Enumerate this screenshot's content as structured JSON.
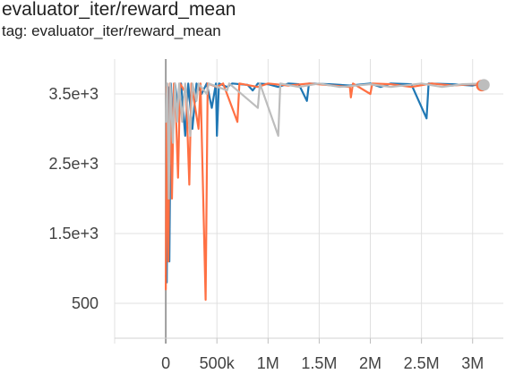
{
  "header": {
    "title": "evaluator_iter/reward_mean",
    "subtitle": "tag: evaluator_iter/reward_mean"
  },
  "chart_data": {
    "type": "line",
    "title": "evaluator_iter/reward_mean",
    "xlabel": "",
    "ylabel": "",
    "xlim": [
      -500000,
      3300000
    ],
    "ylim": [
      0,
      4000
    ],
    "grid": true,
    "x_ticks": [
      {
        "value": 0,
        "label": "0"
      },
      {
        "value": 500000,
        "label": "500k"
      },
      {
        "value": 1000000,
        "label": "1M"
      },
      {
        "value": 1500000,
        "label": "1.5M"
      },
      {
        "value": 2000000,
        "label": "2M"
      },
      {
        "value": 2500000,
        "label": "2.5M"
      },
      {
        "value": 3000000,
        "label": "3M"
      }
    ],
    "y_ticks": [
      {
        "value": 500,
        "label": "500"
      },
      {
        "value": 1500,
        "label": "1.5e+3"
      },
      {
        "value": 2500,
        "label": "2.5e+3"
      },
      {
        "value": 3500,
        "label": "3.5e+3"
      }
    ],
    "series": [
      {
        "color": "#1f77b4",
        "points": [
          [
            0,
            900
          ],
          [
            10000,
            800
          ],
          [
            20000,
            3600
          ],
          [
            35000,
            1100
          ],
          [
            50000,
            3650
          ],
          [
            70000,
            3000
          ],
          [
            90000,
            3650
          ],
          [
            120000,
            3300
          ],
          [
            150000,
            3650
          ],
          [
            190000,
            2900
          ],
          [
            220000,
            3650
          ],
          [
            260000,
            3000
          ],
          [
            300000,
            3650
          ],
          [
            350000,
            3500
          ],
          [
            400000,
            3650
          ],
          [
            450000,
            3300
          ],
          [
            490000,
            3650
          ],
          [
            500000,
            2900
          ],
          [
            520000,
            3650
          ],
          [
            600000,
            3600
          ],
          [
            650000,
            3650
          ],
          [
            800000,
            3630
          ],
          [
            850000,
            3550
          ],
          [
            900000,
            3650
          ],
          [
            1000000,
            3640
          ],
          [
            1100000,
            3600
          ],
          [
            1200000,
            3650
          ],
          [
            1300000,
            3640
          ],
          [
            1380000,
            3400
          ],
          [
            1400000,
            3650
          ],
          [
            1600000,
            3640
          ],
          [
            1800000,
            3620
          ],
          [
            2000000,
            3650
          ],
          [
            2100000,
            3600
          ],
          [
            2200000,
            3650
          ],
          [
            2400000,
            3640
          ],
          [
            2550000,
            3150
          ],
          [
            2570000,
            3650
          ],
          [
            2800000,
            3640
          ],
          [
            3000000,
            3620
          ],
          [
            3100000,
            3650
          ]
        ]
      },
      {
        "color": "#ff7043",
        "points": [
          [
            0,
            700
          ],
          [
            10000,
            3600
          ],
          [
            25000,
            1100
          ],
          [
            40000,
            3650
          ],
          [
            60000,
            2000
          ],
          [
            80000,
            3650
          ],
          [
            100000,
            3200
          ],
          [
            120000,
            2300
          ],
          [
            140000,
            3650
          ],
          [
            200000,
            3500
          ],
          [
            230000,
            2200
          ],
          [
            250000,
            3650
          ],
          [
            320000,
            3000
          ],
          [
            340000,
            3650
          ],
          [
            390000,
            550
          ],
          [
            410000,
            3650
          ],
          [
            500000,
            3600
          ],
          [
            560000,
            3650
          ],
          [
            700000,
            3100
          ],
          [
            720000,
            3650
          ],
          [
            900000,
            3600
          ],
          [
            1000000,
            3650
          ],
          [
            1200000,
            3620
          ],
          [
            1400000,
            3650
          ],
          [
            1800000,
            3600
          ],
          [
            1810000,
            3450
          ],
          [
            1830000,
            3650
          ],
          [
            2000000,
            3500
          ],
          [
            2020000,
            3650
          ],
          [
            2200000,
            3640
          ],
          [
            2400000,
            3600
          ],
          [
            2600000,
            3650
          ],
          [
            2800000,
            3620
          ],
          [
            3000000,
            3640
          ],
          [
            3100000,
            3620
          ]
        ]
      },
      {
        "color": "#bdbdbd",
        "points": [
          [
            0,
            3100
          ],
          [
            15000,
            3650
          ],
          [
            30000,
            2000
          ],
          [
            45000,
            3650
          ],
          [
            70000,
            2800
          ],
          [
            90000,
            3650
          ],
          [
            110000,
            3100
          ],
          [
            130000,
            3650
          ],
          [
            160000,
            3100
          ],
          [
            190000,
            3650
          ],
          [
            240000,
            2900
          ],
          [
            260000,
            3650
          ],
          [
            300000,
            3400
          ],
          [
            320000,
            3650
          ],
          [
            400000,
            3500
          ],
          [
            420000,
            3650
          ],
          [
            600000,
            3550
          ],
          [
            620000,
            3650
          ],
          [
            900000,
            3300
          ],
          [
            920000,
            3650
          ],
          [
            1100000,
            2900
          ],
          [
            1120000,
            3650
          ],
          [
            1300000,
            3600
          ],
          [
            1500000,
            3650
          ],
          [
            1700000,
            3600
          ],
          [
            2000000,
            3640
          ],
          [
            2200000,
            3600
          ],
          [
            2500000,
            3650
          ],
          [
            2700000,
            3600
          ],
          [
            2900000,
            3640
          ],
          [
            3100000,
            3650
          ]
        ]
      }
    ],
    "end_markers": [
      {
        "color": "#ff7043",
        "x": 3090000,
        "y": 3620
      },
      {
        "color": "#bdbdbd",
        "x": 3110000,
        "y": 3630
      }
    ]
  }
}
